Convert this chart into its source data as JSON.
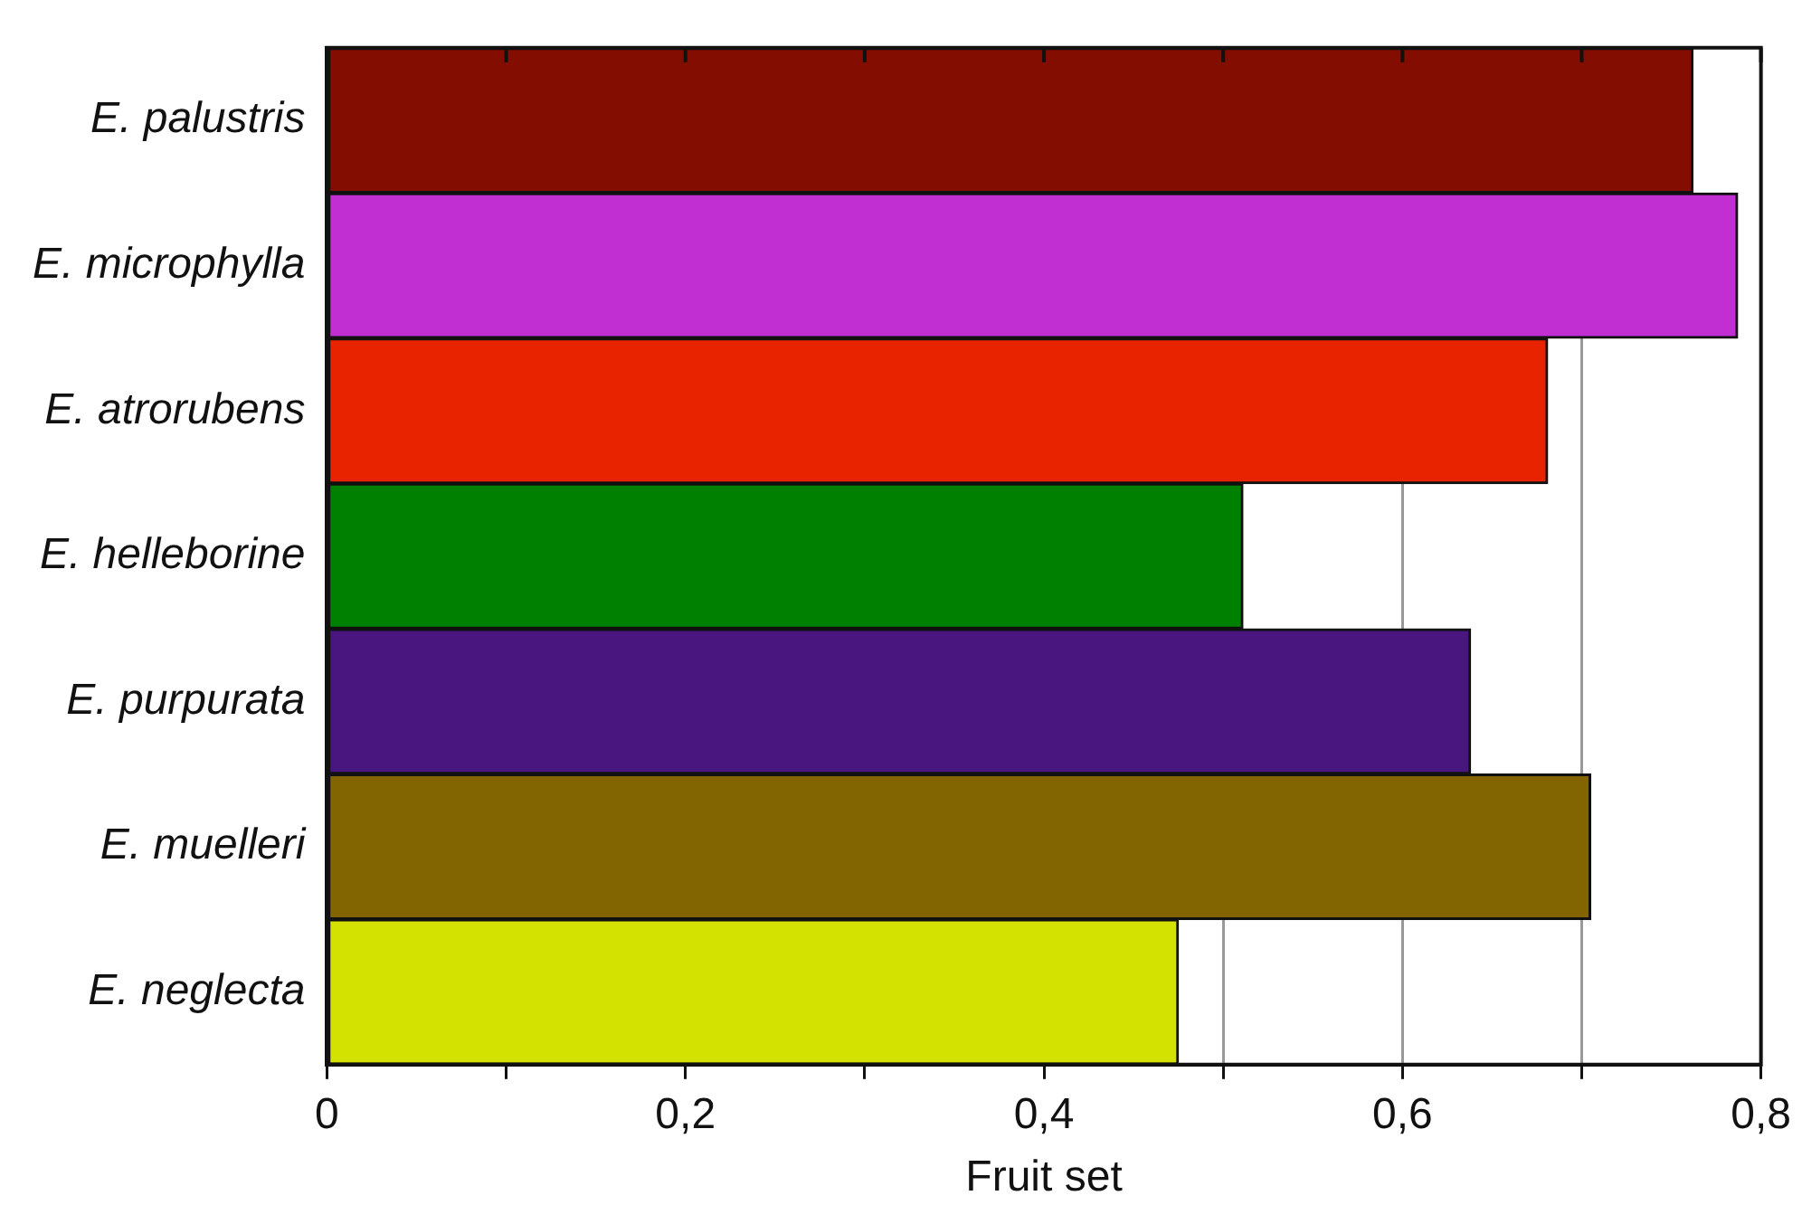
{
  "chart_data": {
    "type": "bar",
    "orientation": "horizontal",
    "xlabel": "Fruit set",
    "categories": [
      "E. palustris",
      "E. microphylla",
      "E. atrorubens",
      "E. helleborine",
      "E. purpurata",
      "E. muelleri",
      "E. neglecta"
    ],
    "values": [
      0.762,
      0.787,
      0.681,
      0.511,
      0.638,
      0.705,
      0.475
    ],
    "colors": [
      "#820d00",
      "#c12fd2",
      "#e82400",
      "#008000",
      "#48167e",
      "#826500",
      "#d3e200"
    ],
    "xlim": [
      0,
      0.8
    ],
    "xticks": [
      0,
      {
        "value": 0.1,
        "label": null
      },
      {
        "value": 0.2,
        "label": "0,2"
      },
      {
        "value": 0.3,
        "label": null
      },
      {
        "value": 0.4,
        "label": "0,4"
      },
      {
        "value": 0.5,
        "label": null
      },
      {
        "value": 0.6,
        "label": "0,6"
      },
      {
        "value": 0.7,
        "label": null
      },
      {
        "value": 0.8,
        "label": "0,8"
      }
    ],
    "grid": "x",
    "legend": false
  }
}
